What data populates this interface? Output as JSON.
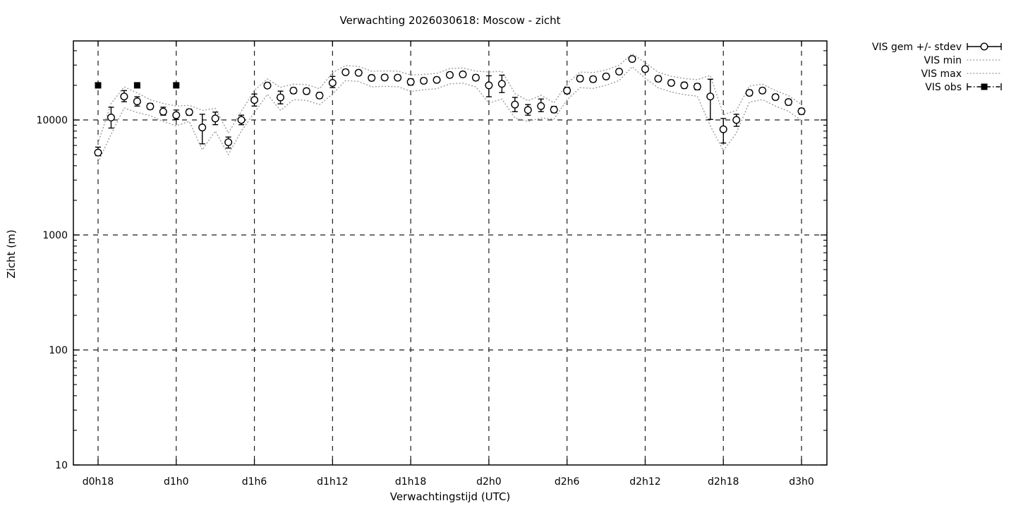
{
  "colors": {
    "foreground": "#000000",
    "background": "#ffffff",
    "envelope": "#a6a6a6",
    "grid": "#1c1c1c"
  },
  "legend": [
    {
      "label": "VIS gem +/- stdev",
      "style": "errorbar-circle"
    },
    {
      "label": "VIS min",
      "style": "dotted"
    },
    {
      "label": "VIS max",
      "style": "dotted"
    },
    {
      "label": "VIS obs",
      "style": "dashdot-square"
    }
  ],
  "chart_data": {
    "type": "line",
    "title": "Verwachting 2026030618: Moscow - zicht",
    "xlabel": "Verwachtingstijd (UTC)",
    "ylabel": "Zicht (m)",
    "grid": true,
    "y_scale": "log",
    "ylim": [
      10,
      48700
    ],
    "xlim_hours": [
      -1.9,
      55.95
    ],
    "legend_position": "outside right top",
    "y_ticks": [
      10,
      100,
      1000,
      10000
    ],
    "y_tick_labels": [
      "10",
      "100",
      "1000",
      "10000"
    ],
    "x_ticks": [
      {
        "hour": 0,
        "label": "d0h18"
      },
      {
        "hour": 6,
        "label": "d1h0"
      },
      {
        "hour": 12,
        "label": "d1h6"
      },
      {
        "hour": 18,
        "label": "d1h12"
      },
      {
        "hour": 24,
        "label": "d1h18"
      },
      {
        "hour": 30,
        "label": "d2h0"
      },
      {
        "hour": 36,
        "label": "d2h6"
      },
      {
        "hour": 42,
        "label": "d2h12"
      },
      {
        "hour": 48,
        "label": "d2h18"
      },
      {
        "hour": 54,
        "label": "d3h0"
      }
    ],
    "hours": [
      0,
      1,
      2,
      3,
      4,
      5,
      6,
      7,
      8,
      9,
      10,
      11,
      12,
      13,
      14,
      15,
      16,
      17,
      18,
      19,
      20,
      21,
      22,
      23,
      24,
      25,
      26,
      27,
      28,
      29,
      30,
      31,
      32,
      33,
      34,
      35,
      36,
      37,
      38,
      39,
      40,
      41,
      42,
      43,
      44,
      45,
      46,
      47,
      48,
      49,
      50,
      51,
      52,
      53,
      54
    ],
    "series": [
      {
        "name": "VIS gem +/- stdev",
        "style": "yerrorbars",
        "mean": [
          5200,
          10500,
          16000,
          14500,
          13100,
          11800,
          11000,
          11700,
          8600,
          10300,
          6400,
          10000,
          14900,
          19900,
          15700,
          18000,
          17800,
          16300,
          21000,
          26000,
          25700,
          23200,
          23400,
          23300,
          21400,
          21900,
          22300,
          24600,
          24900,
          23300,
          20000,
          20600,
          13600,
          12200,
          13200,
          12300,
          18000,
          22900,
          22600,
          23900,
          26300,
          33900,
          27700,
          22800,
          21000,
          20000,
          19500,
          16000,
          8300,
          10000,
          17200,
          18000,
          15800,
          14300,
          11900
        ],
        "stdev_lo": [
          4900,
          8500,
          14400,
          13200,
          12400,
          11000,
          10100,
          11000,
          6200,
          9100,
          5700,
          9100,
          13200,
          19000,
          13800,
          17000,
          16800,
          15400,
          19100,
          25000,
          24500,
          22000,
          22300,
          22200,
          20100,
          20800,
          21200,
          23400,
          23700,
          22100,
          15900,
          17300,
          11800,
          11000,
          11800,
          11600,
          16900,
          21700,
          21400,
          22700,
          25000,
          33000,
          26300,
          21600,
          19900,
          18900,
          18300,
          10100,
          6300,
          8800,
          16300,
          17100,
          15000,
          13500,
          11200
        ],
        "stdev_hi": [
          5800,
          12900,
          18000,
          15900,
          13900,
          12900,
          12200,
          12400,
          11200,
          11700,
          7100,
          11000,
          16800,
          21000,
          17800,
          19000,
          18800,
          17300,
          23900,
          27500,
          27000,
          24500,
          24700,
          24600,
          22800,
          23100,
          23500,
          25900,
          26200,
          24600,
          24200,
          24500,
          15700,
          13600,
          15200,
          13100,
          19200,
          24200,
          23900,
          25200,
          27700,
          34800,
          29200,
          24100,
          22200,
          21200,
          20700,
          22600,
          10300,
          11200,
          18200,
          19000,
          16700,
          15100,
          12600
        ]
      },
      {
        "name": "VIS min",
        "style": "dotted",
        "values": [
          4300,
          7500,
          12700,
          11600,
          10900,
          9700,
          8900,
          9700,
          5500,
          8000,
          5000,
          8000,
          11600,
          16700,
          12100,
          15000,
          14800,
          13600,
          16800,
          22000,
          21600,
          19400,
          19600,
          19500,
          17700,
          18300,
          18700,
          20600,
          20900,
          19400,
          14000,
          15200,
          10400,
          9700,
          10400,
          10200,
          14900,
          19100,
          18800,
          20000,
          22000,
          29000,
          23100,
          19000,
          17500,
          16600,
          16100,
          8900,
          5400,
          7700,
          14300,
          15000,
          13200,
          11900,
          9900
        ]
      },
      {
        "name": "VIS max",
        "style": "dotted",
        "values": [
          6300,
          13900,
          19400,
          17200,
          15000,
          13900,
          13200,
          13400,
          12100,
          12600,
          7700,
          11900,
          18100,
          22700,
          19200,
          20500,
          20300,
          18700,
          25800,
          29700,
          29200,
          26500,
          26700,
          26600,
          24600,
          24900,
          25400,
          28000,
          28300,
          26600,
          26100,
          26500,
          17000,
          14700,
          16400,
          14100,
          20700,
          26100,
          25800,
          27200,
          29900,
          37600,
          31500,
          26000,
          24000,
          22900,
          22400,
          24400,
          11100,
          12100,
          19700,
          20500,
          18000,
          16300,
          13600
        ]
      },
      {
        "name": "VIS obs",
        "style": "points-filled-square",
        "points": [
          {
            "hour": 0,
            "value": 20000
          },
          {
            "hour": 3,
            "value": 20000
          },
          {
            "hour": 6,
            "value": 20000
          }
        ]
      }
    ]
  }
}
